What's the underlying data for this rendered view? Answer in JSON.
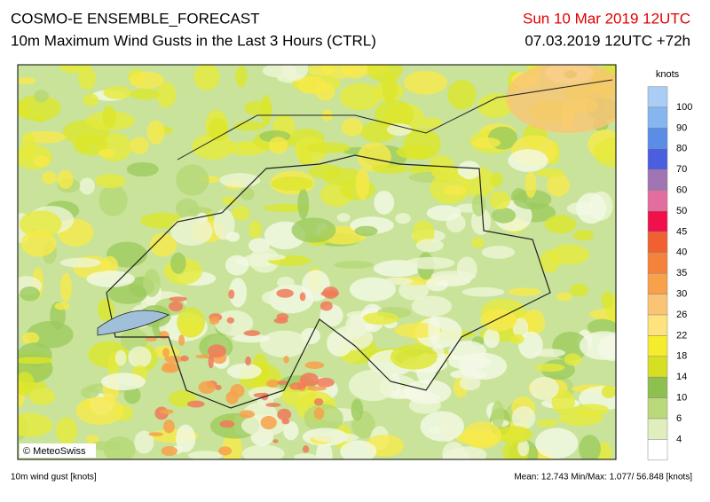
{
  "header": {
    "title": "COSMO-E ENSEMBLE_FORECAST",
    "subtitle": "10m Maximum Wind Gusts in the Last 3 Hours (CTRL)",
    "valid_time": "Sun 10 Mar 2019 12UTC",
    "run_info": "07.03.2019 12UTC +72h"
  },
  "map": {
    "copyright": "© MeteoSwiss"
  },
  "legend": {
    "unit": "knots",
    "labels": [
      100,
      90,
      80,
      70,
      60,
      50,
      45,
      40,
      35,
      30,
      26,
      22,
      18,
      14,
      10,
      6,
      4
    ],
    "colors": [
      "#aacdf6",
      "#86b6f0",
      "#5a8de6",
      "#4a5ee0",
      "#a174b4",
      "#e26ea0",
      "#f0104a",
      "#f06030",
      "#f5823a",
      "#f8a04a",
      "#fbc474",
      "#fde27e",
      "#f6ec2e",
      "#d6df22",
      "#8ec050",
      "#b9d97a",
      "#dfeebc",
      "#ffffff"
    ]
  },
  "footer": {
    "variable": "10m wind gust [knots]",
    "stats": "Mean: 12.743 Min/Max:  1.077/ 56.848 [knots]"
  }
}
